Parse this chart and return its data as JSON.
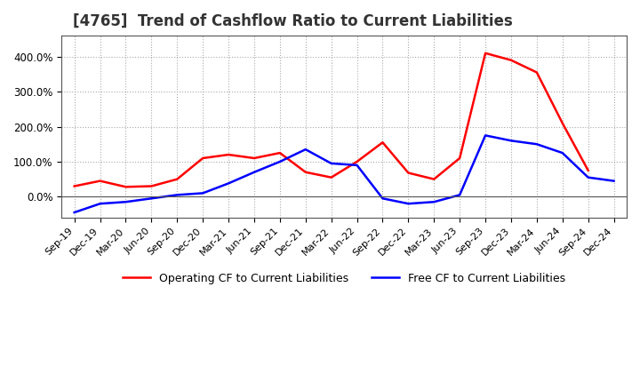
{
  "title": "[4765]  Trend of Cashflow Ratio to Current Liabilities",
  "title_fontsize": 12,
  "x_labels": [
    "Sep-19",
    "Dec-19",
    "Mar-20",
    "Jun-20",
    "Sep-20",
    "Dec-20",
    "Mar-21",
    "Jun-21",
    "Sep-21",
    "Dec-21",
    "Mar-22",
    "Jun-22",
    "Sep-22",
    "Dec-22",
    "Mar-23",
    "Jun-23",
    "Sep-23",
    "Dec-23",
    "Mar-24",
    "Jun-24",
    "Sep-24",
    "Dec-24"
  ],
  "operating_cf": [
    0.3,
    0.45,
    0.28,
    0.3,
    0.5,
    1.1,
    1.2,
    1.1,
    1.25,
    0.7,
    0.55,
    1.0,
    1.55,
    0.68,
    0.5,
    1.1,
    4.1,
    3.9,
    3.55,
    2.1,
    0.75,
    null
  ],
  "free_cf": [
    -0.45,
    -0.2,
    -0.15,
    -0.05,
    0.05,
    0.1,
    0.38,
    0.7,
    1.0,
    1.35,
    0.95,
    0.9,
    -0.05,
    -0.2,
    -0.15,
    0.05,
    1.75,
    1.6,
    1.5,
    1.25,
    0.55,
    0.45
  ],
  "ylim_min": -0.6,
  "ylim_max": 4.6,
  "yticks": [
    0.0,
    1.0,
    2.0,
    3.0,
    4.0
  ],
  "ytick_labels": [
    "0.0%",
    "100.0%",
    "200.0%",
    "300.0%",
    "400.0%"
  ],
  "operating_color": "#ff0000",
  "free_color": "#0000ff",
  "legend_op": "Operating CF to Current Liabilities",
  "legend_free": "Free CF to Current Liabilities",
  "background_color": "#ffffff",
  "grid_color": "#aaaaaa",
  "spine_color": "#555555"
}
